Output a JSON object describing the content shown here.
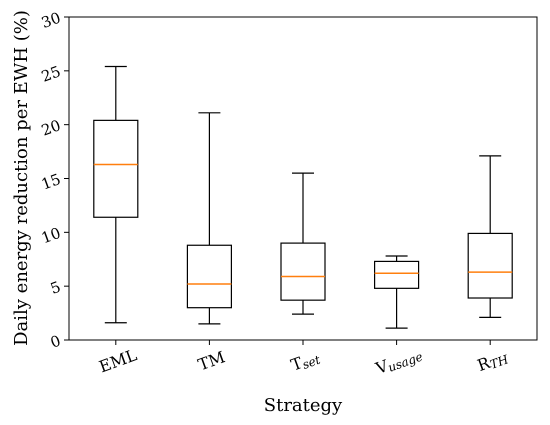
{
  "chart_data": {
    "type": "box",
    "title": "",
    "xlabel": "Strategy",
    "ylabel": "Daily energy reduction per EWH (%)",
    "ylim": [
      0,
      30
    ],
    "yticks": [
      0,
      5,
      10,
      15,
      20,
      25,
      30
    ],
    "grid": false,
    "median_color": "#ff7f0e",
    "box_color": "#000000",
    "categories": [
      {
        "main": "EML",
        "sub": ""
      },
      {
        "main": "TM",
        "sub": ""
      },
      {
        "main": "T",
        "sub": "set"
      },
      {
        "main": "V",
        "sub": "usage"
      },
      {
        "main": "R",
        "sub": "TH"
      }
    ],
    "boxes": [
      {
        "whisker_low": 1.6,
        "q1": 11.4,
        "median": 16.3,
        "q3": 20.4,
        "whisker_high": 25.4
      },
      {
        "whisker_low": 1.5,
        "q1": 3.0,
        "median": 5.2,
        "q3": 8.8,
        "whisker_high": 21.1
      },
      {
        "whisker_low": 2.4,
        "q1": 3.7,
        "median": 5.9,
        "q3": 9.0,
        "whisker_high": 15.5
      },
      {
        "whisker_low": 1.1,
        "q1": 4.8,
        "median": 6.2,
        "q3": 7.3,
        "whisker_high": 7.8
      },
      {
        "whisker_low": 2.1,
        "q1": 3.9,
        "median": 6.3,
        "q3": 9.9,
        "whisker_high": 17.1
      }
    ]
  }
}
